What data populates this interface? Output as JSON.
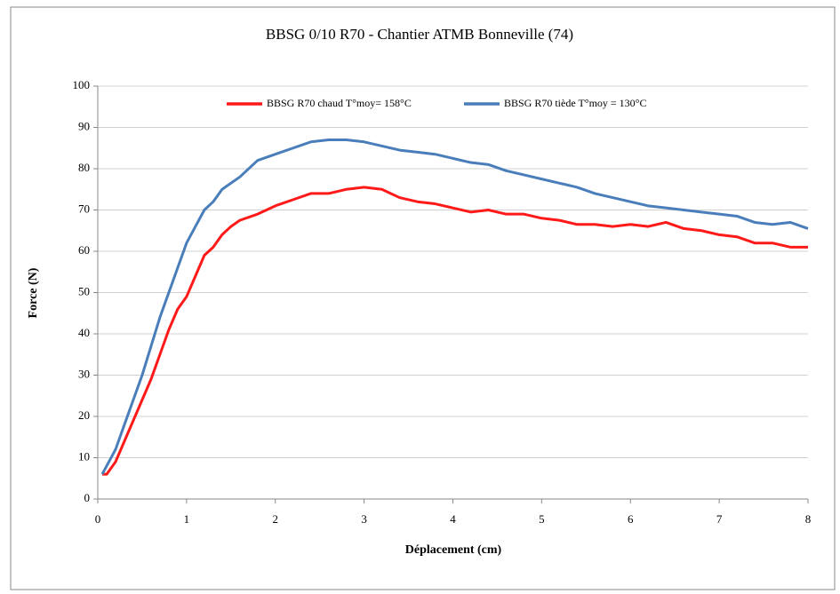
{
  "chart_data": {
    "type": "line",
    "title": "BBSG 0/10 R70 - Chantier ATMB Bonneville (74)",
    "x_label": "Déplacement (cm)",
    "y_label": "Force (N)",
    "x": [
      0.05,
      0.1,
      0.2,
      0.3,
      0.4,
      0.5,
      0.6,
      0.7,
      0.8,
      0.9,
      1.0,
      1.1,
      1.2,
      1.3,
      1.4,
      1.5,
      1.6,
      1.8,
      2.0,
      2.2,
      2.4,
      2.6,
      2.8,
      3.0,
      3.2,
      3.4,
      3.6,
      3.8,
      4.0,
      4.2,
      4.4,
      4.6,
      4.8,
      5.0,
      5.2,
      5.4,
      5.6,
      5.8,
      6.0,
      6.2,
      6.4,
      6.6,
      6.8,
      7.0,
      7.2,
      7.4,
      7.6,
      7.8,
      8.0
    ],
    "series": [
      {
        "name": "BBSG R70 chaud T°moy= 158°C",
        "color": "#ff1a1a",
        "values": [
          6,
          6,
          9,
          14,
          19,
          24,
          29,
          35,
          41,
          46,
          49,
          54,
          59,
          61,
          64,
          66,
          67.5,
          69,
          71,
          72.5,
          74,
          74,
          75,
          75.5,
          75,
          73,
          72,
          71.5,
          70.5,
          69.5,
          70,
          69,
          69,
          68,
          67.5,
          66.5,
          66.5,
          66,
          66.5,
          66,
          67,
          65.5,
          65,
          64,
          63.5,
          62,
          62,
          61,
          61
        ]
      },
      {
        "name": "BBSG R70 tiède T°moy = 130°C",
        "color": "#4a7ebb",
        "values": [
          6,
          8,
          12,
          18,
          24,
          30,
          37,
          44,
          50,
          56,
          62,
          66,
          70,
          72,
          75,
          76.5,
          78,
          82,
          83.5,
          85,
          86.5,
          87,
          87,
          86.5,
          85.5,
          84.5,
          84,
          83.5,
          82.5,
          81.5,
          81,
          79.5,
          78.5,
          77.5,
          76.5,
          75.5,
          74,
          73,
          72,
          71,
          70.5,
          70,
          69.5,
          69,
          68.5,
          67,
          66.5,
          67,
          65.5
        ]
      }
    ],
    "xlim": [
      0,
      8
    ],
    "xticks": [
      0,
      1,
      2,
      3,
      4,
      5,
      6,
      7,
      8
    ],
    "ylim": [
      0,
      100
    ],
    "yticks": [
      0,
      10,
      20,
      30,
      40,
      50,
      60,
      70,
      80,
      90,
      100
    ],
    "grid": true,
    "legend": "top"
  }
}
